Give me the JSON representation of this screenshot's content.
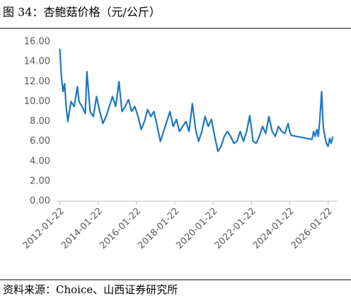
{
  "chart_data": {
    "type": "line",
    "title": "图 34：杏鲍菇价格（元/公斤）",
    "source": "资料来源：Choice、山西证券研究所",
    "x": [
      "2012-01-22",
      "2012-02-22",
      "2012-03-22",
      "2012-04-22",
      "2012-05-22",
      "2012-06-22",
      "2012-08-22",
      "2012-10-22",
      "2012-12-22",
      "2013-01-22",
      "2013-03-22",
      "2013-05-22",
      "2013-06-22",
      "2013-08-22",
      "2013-10-22",
      "2013-12-22",
      "2014-02-22",
      "2014-04-22",
      "2014-06-22",
      "2014-08-22",
      "2014-10-22",
      "2014-12-22",
      "2015-02-22",
      "2015-04-22",
      "2015-06-22",
      "2015-08-22",
      "2015-10-22",
      "2015-12-22",
      "2016-02-22",
      "2016-04-22",
      "2016-06-22",
      "2016-08-22",
      "2016-10-22",
      "2016-12-22",
      "2017-02-22",
      "2017-04-22",
      "2017-06-22",
      "2017-08-22",
      "2017-10-22",
      "2017-12-22",
      "2018-02-22",
      "2018-04-22",
      "2018-06-22",
      "2018-08-22",
      "2018-10-22",
      "2018-12-22",
      "2019-02-22",
      "2019-04-22",
      "2019-06-22",
      "2019-08-22",
      "2019-10-22",
      "2019-12-22",
      "2020-02-22",
      "2020-04-22",
      "2020-06-22",
      "2020-08-22",
      "2020-10-22",
      "2020-12-22",
      "2021-02-22",
      "2021-04-22",
      "2021-06-22",
      "2021-08-22",
      "2021-10-22",
      "2021-12-22",
      "2022-02-22",
      "2022-04-22",
      "2022-06-22",
      "2022-08-22",
      "2022-10-22",
      "2022-12-22",
      "2023-02-22",
      "2023-04-22",
      "2023-06-22",
      "2023-08-22",
      "2023-10-22",
      "2023-12-22",
      "2024-01-22",
      "2024-02-22",
      "2025-03-22",
      "2025-04-22",
      "2025-05-22",
      "2025-06-22",
      "2025-07-22",
      "2025-08-22",
      "2025-09-22",
      "2025-10-22",
      "2025-11-22",
      "2025-12-22",
      "2026-01-22",
      "2026-02-22",
      "2026-03-22",
      "2026-04-22"
    ],
    "series": [
      {
        "color": "#1f77c0",
        "values": [
          15.3,
          12.5,
          11.0,
          11.8,
          9.5,
          8.0,
          10.0,
          9.5,
          11.5,
          10.0,
          9.5,
          8.8,
          13.0,
          9.0,
          8.5,
          10.5,
          9.0,
          7.8,
          8.5,
          9.5,
          10.5,
          9.5,
          12.0,
          9.0,
          9.5,
          10.2,
          9.0,
          9.5,
          8.5,
          7.2,
          8.0,
          9.2,
          8.5,
          9.0,
          7.5,
          6.0,
          7.0,
          8.0,
          9.0,
          7.5,
          8.2,
          7.0,
          7.5,
          8.0,
          7.0,
          9.8,
          7.2,
          6.0,
          7.0,
          8.5,
          7.5,
          8.2,
          6.5,
          5.0,
          5.5,
          6.5,
          7.0,
          6.5,
          5.8,
          6.0,
          7.0,
          6.0,
          7.0,
          8.6,
          6.0,
          5.8,
          6.5,
          7.5,
          6.8,
          8.5,
          7.0,
          6.5,
          7.5,
          7.0,
          6.8,
          7.8,
          7.0,
          6.6,
          6.2,
          7.0,
          6.5,
          7.2,
          6.5,
          8.5,
          11.0,
          7.5,
          6.5,
          5.8,
          5.5,
          6.3,
          5.8,
          6.5
        ]
      }
    ],
    "xlim": [
      "2011-11-22",
      "2026-07-22"
    ],
    "xticks": [
      "2012-01-22",
      "2014-01-22",
      "2016-01-22",
      "2018-01-22",
      "2020-01-22",
      "2022-01-22",
      "2024-01-22",
      "2026-01-22"
    ],
    "ylim": [
      0,
      16
    ],
    "yticks": [
      {
        "value": 0,
        "label": "0.00"
      },
      {
        "value": 2,
        "label": "2.00"
      },
      {
        "value": 4,
        "label": "4.00"
      },
      {
        "value": 6,
        "label": "6.00"
      },
      {
        "value": 8,
        "label": "8.00"
      },
      {
        "value": 10,
        "label": "10.00"
      },
      {
        "value": 12,
        "label": "12.00"
      },
      {
        "value": 14,
        "label": "14.00"
      },
      {
        "value": 16,
        "label": "16.00"
      }
    ],
    "grid": false
  }
}
